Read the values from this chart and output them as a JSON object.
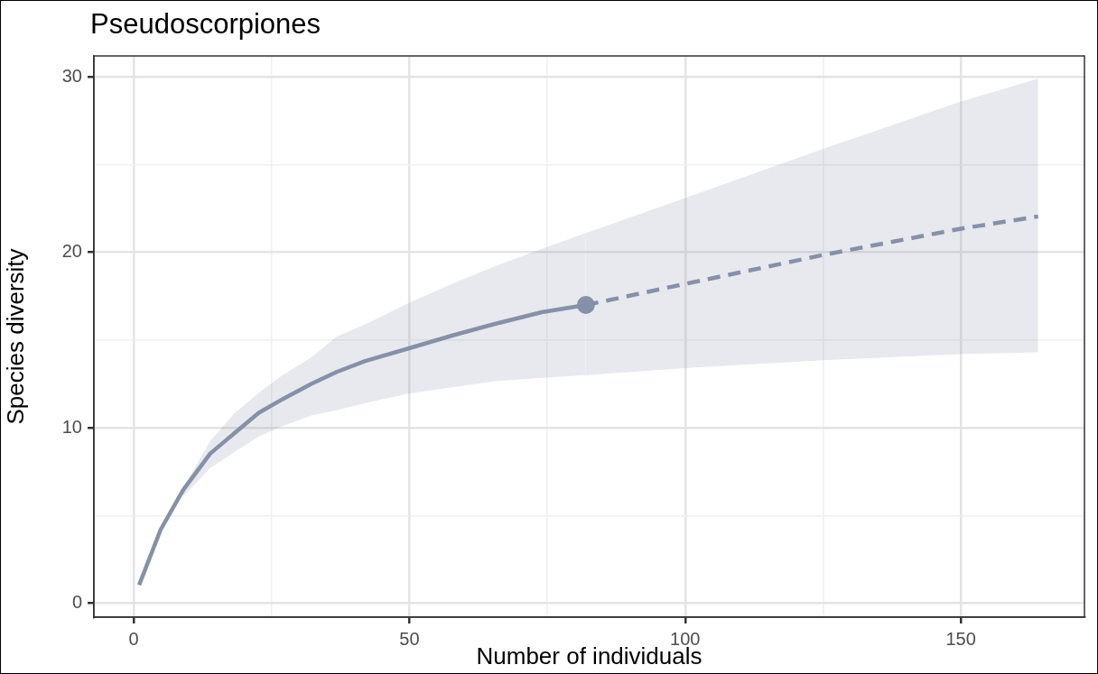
{
  "chart_data": {
    "type": "line",
    "title": "Pseudoscorpiones",
    "xlabel": "Number of individuals",
    "ylabel": "Species diversity",
    "xlim": [
      -7.2,
      172.4
    ],
    "ylim": [
      -0.8,
      31.2
    ],
    "xticks": [
      0,
      {
        "value": 25,
        "label": null
      },
      50,
      {
        "value": 75,
        "label": null
      },
      100,
      {
        "value": 125,
        "label": null
      },
      150
    ],
    "yticks": [
      0,
      {
        "value": 5,
        "label": null
      },
      10,
      {
        "value": 15,
        "label": null
      },
      20,
      {
        "value": 25,
        "label": null
      },
      30
    ],
    "grid": true,
    "legend": false,
    "series": [
      {
        "color": "#8691a8",
        "line_style": "solid",
        "marker": "none",
        "x": [
          1,
          4.9,
          9,
          13.9,
          18.2,
          22.7,
          27,
          32.2,
          36.8,
          42,
          49.8,
          57.7,
          65.5,
          74,
          82
        ],
        "values": [
          1.03,
          4.19,
          6.46,
          8.53,
          9.67,
          10.85,
          11.63,
          12.5,
          13.18,
          13.8,
          14.52,
          15.25,
          15.92,
          16.59,
          17
        ],
        "lower": [
          null,
          null,
          6.1,
          7.7,
          8.6,
          9.5,
          10.1,
          10.7,
          11,
          11.4,
          11.95,
          12.3,
          12.65,
          12.85,
          13
        ],
        "upper": [
          null,
          null,
          6.6,
          9.25,
          10.8,
          12,
          13,
          14,
          15.2,
          15.9,
          17.1,
          18.2,
          19.2,
          20.2,
          21.1
        ]
      },
      {
        "color": "#8691a8",
        "line_style": "dashed",
        "marker": "none",
        "x": [
          82,
          100,
          125,
          150,
          164
        ],
        "values": [
          17,
          18.2,
          19.85,
          21.35,
          22.05
        ],
        "lower": [
          13,
          13.4,
          13.85,
          14.2,
          14.3
        ],
        "upper": [
          21.1,
          23.1,
          25.9,
          28.6,
          29.9
        ]
      },
      {
        "type": "scatter",
        "color": "#8691a8",
        "marker": "circle",
        "x": [
          82
        ],
        "values": [
          17
        ]
      }
    ]
  }
}
